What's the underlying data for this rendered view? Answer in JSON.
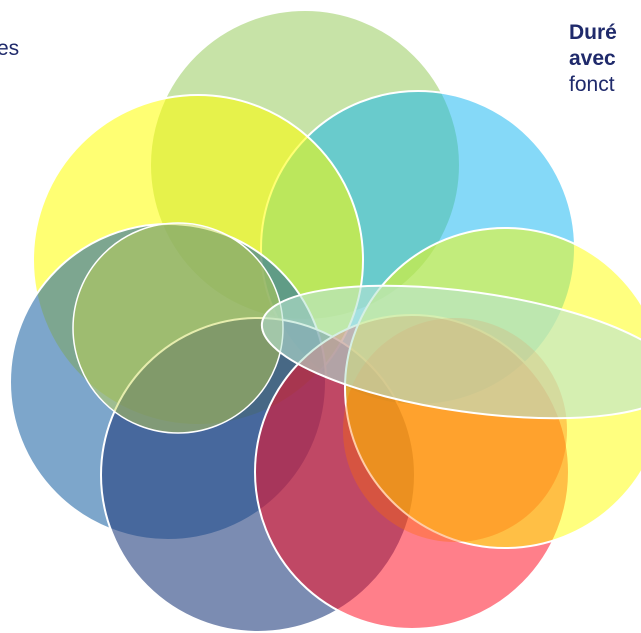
{
  "left_fragment": "es",
  "right_text": {
    "line1": "Duré",
    "line2": "avec",
    "line3": "fonct"
  },
  "colors": {
    "text": "#1f2a6b",
    "green": "#8fc750",
    "cyan": "#0cb4f2",
    "yellow": "#ffff00",
    "blue": "#1f65a6",
    "slate": "#233f7e",
    "red": "#ff0a1e",
    "orange": "#ff6e00",
    "light_yellow": "#e0ff32",
    "ellipse": "#9fd0a8"
  },
  "circles": [
    {
      "id": "green",
      "color_key": "green",
      "opacity": 0.5
    },
    {
      "id": "cyan",
      "color_key": "cyan",
      "opacity": 0.5
    },
    {
      "id": "yellow-top",
      "color_key": "yellow",
      "opacity": 0.5
    },
    {
      "id": "blue",
      "color_key": "blue",
      "opacity": 0.6
    },
    {
      "id": "slate",
      "color_key": "slate",
      "opacity": 0.6
    },
    {
      "id": "red",
      "color_key": "red",
      "opacity": 0.5
    },
    {
      "id": "orange-yellow",
      "color_key": "yellow",
      "opacity": 0.5
    },
    {
      "id": "olive",
      "color_key": "light_yellow",
      "opacity": 0.45
    }
  ]
}
